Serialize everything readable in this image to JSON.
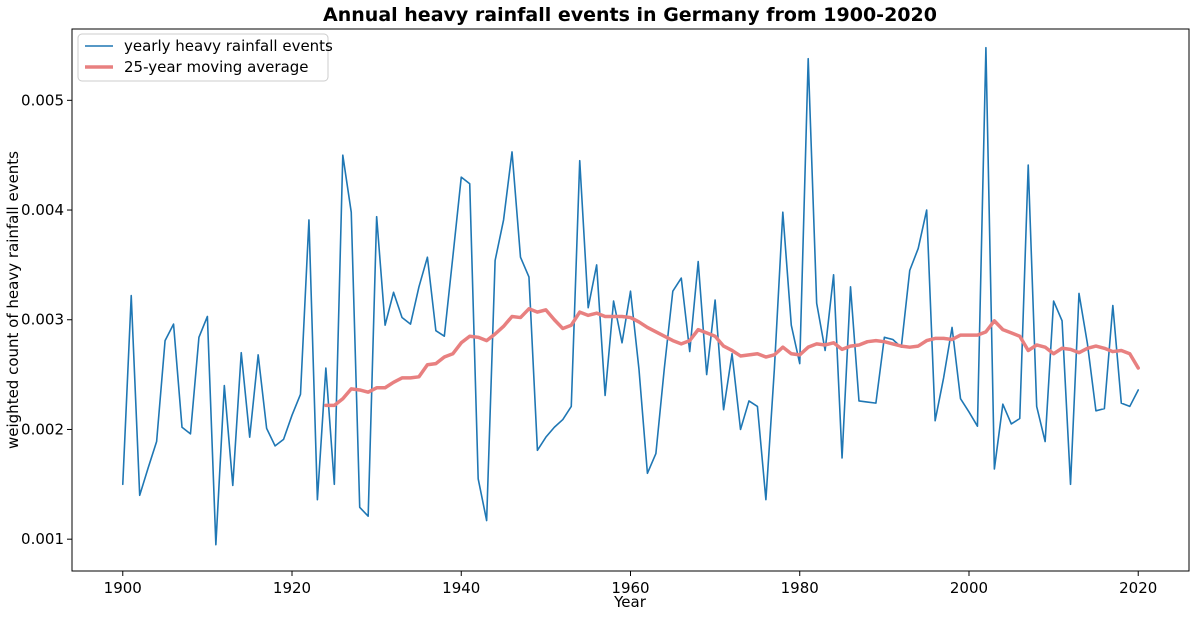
{
  "chart_data": {
    "type": "line",
    "title": "Annual heavy rainfall events in Germany from 1900-2020",
    "xlabel": "Year",
    "ylabel": "weighted count of heavy rainfall events",
    "xlim": [
      1894,
      2026
    ],
    "ylim": [
      0.00071,
      0.00565
    ],
    "x_ticks": [
      1900,
      1920,
      1940,
      1960,
      1980,
      2000,
      2020
    ],
    "x_tick_labels": [
      "1900",
      "1920",
      "1940",
      "1960",
      "1980",
      "2000",
      "2020"
    ],
    "y_ticks": [
      0.001,
      0.002,
      0.003,
      0.004,
      0.005
    ],
    "y_tick_labels": [
      "0.001",
      "0.002",
      "0.003",
      "0.004",
      "0.005"
    ],
    "grid": false,
    "legend_position": "top-left",
    "series": [
      {
        "name": "yearly heavy rainfall events",
        "color": "#1f77b4",
        "x": [
          1900,
          1901,
          1902,
          1903,
          1904,
          1905,
          1906,
          1907,
          1908,
          1909,
          1910,
          1911,
          1912,
          1913,
          1914,
          1915,
          1916,
          1917,
          1918,
          1919,
          1920,
          1921,
          1922,
          1923,
          1924,
          1925,
          1926,
          1927,
          1928,
          1929,
          1930,
          1931,
          1932,
          1933,
          1934,
          1935,
          1936,
          1937,
          1938,
          1939,
          1940,
          1941,
          1942,
          1943,
          1944,
          1945,
          1946,
          1947,
          1948,
          1949,
          1950,
          1951,
          1952,
          1953,
          1954,
          1955,
          1956,
          1957,
          1958,
          1959,
          1960,
          1961,
          1962,
          1963,
          1964,
          1965,
          1966,
          1967,
          1968,
          1969,
          1970,
          1971,
          1972,
          1973,
          1974,
          1975,
          1976,
          1977,
          1978,
          1979,
          1980,
          1981,
          1982,
          1983,
          1984,
          1985,
          1986,
          1987,
          1988,
          1989,
          1990,
          1991,
          1992,
          1993,
          1994,
          1995,
          1996,
          1997,
          1998,
          1999,
          2000,
          2001,
          2002,
          2003,
          2004,
          2005,
          2006,
          2007,
          2008,
          2009,
          2010,
          2011,
          2012,
          2013,
          2014,
          2015,
          2016,
          2017,
          2018,
          2019,
          2020
        ],
        "values": [
          0.0015,
          0.00322,
          0.0014,
          0.00165,
          0.00189,
          0.00281,
          0.00296,
          0.00202,
          0.00196,
          0.00284,
          0.00303,
          0.00095,
          0.0024,
          0.00149,
          0.0027,
          0.00193,
          0.00268,
          0.00201,
          0.00185,
          0.00191,
          0.00213,
          0.00232,
          0.00391,
          0.00136,
          0.00256,
          0.0015,
          0.0045,
          0.00398,
          0.00129,
          0.00121,
          0.00394,
          0.00295,
          0.00325,
          0.00302,
          0.00296,
          0.0033,
          0.00357,
          0.0029,
          0.00285,
          0.00357,
          0.0043,
          0.00424,
          0.00155,
          0.00117,
          0.00354,
          0.00391,
          0.00453,
          0.00357,
          0.00339,
          0.00181,
          0.00193,
          0.00202,
          0.00209,
          0.00221,
          0.00445,
          0.00311,
          0.0035,
          0.00231,
          0.00317,
          0.00279,
          0.00326,
          0.00255,
          0.0016,
          0.00178,
          0.00256,
          0.00326,
          0.00338,
          0.00271,
          0.00353,
          0.0025,
          0.00318,
          0.00218,
          0.00269,
          0.002,
          0.00226,
          0.00221,
          0.00136,
          0.00255,
          0.00398,
          0.00295,
          0.0026,
          0.00538,
          0.00315,
          0.00272,
          0.00341,
          0.00174,
          0.0033,
          0.00226,
          0.00225,
          0.00224,
          0.00284,
          0.00282,
          0.00275,
          0.00345,
          0.00365,
          0.004,
          0.00208,
          0.00247,
          0.00293,
          0.00228,
          0.00216,
          0.00203,
          0.00548,
          0.00164,
          0.00223,
          0.00205,
          0.0021,
          0.00441,
          0.00221,
          0.00189,
          0.00317,
          0.00299,
          0.0015,
          0.00324,
          0.00278,
          0.00217,
          0.00219,
          0.00313,
          0.00224,
          0.00221,
          0.00236
        ]
      },
      {
        "name": "25-year moving average",
        "color": "#e88080",
        "x": [
          1924,
          1925,
          1926,
          1927,
          1928,
          1929,
          1930,
          1931,
          1932,
          1933,
          1934,
          1935,
          1936,
          1937,
          1938,
          1939,
          1940,
          1941,
          1942,
          1943,
          1944,
          1945,
          1946,
          1947,
          1948,
          1949,
          1950,
          1951,
          1952,
          1953,
          1954,
          1955,
          1956,
          1957,
          1958,
          1959,
          1960,
          1961,
          1962,
          1963,
          1964,
          1965,
          1966,
          1967,
          1968,
          1969,
          1970,
          1971,
          1972,
          1973,
          1974,
          1975,
          1976,
          1977,
          1978,
          1979,
          1980,
          1981,
          1982,
          1983,
          1984,
          1985,
          1986,
          1987,
          1988,
          1989,
          1990,
          1991,
          1992,
          1993,
          1994,
          1995,
          1996,
          1997,
          1998,
          1999,
          2000,
          2001,
          2002,
          2003,
          2004,
          2005,
          2006,
          2007,
          2008,
          2009,
          2010,
          2011,
          2012,
          2013,
          2014,
          2015,
          2016,
          2017,
          2018,
          2019,
          2020
        ],
        "values": [
          0.00222,
          0.00222,
          0.00228,
          0.00237,
          0.00236,
          0.00234,
          0.00238,
          0.00238,
          0.00243,
          0.00247,
          0.00247,
          0.00248,
          0.00259,
          0.0026,
          0.00266,
          0.00269,
          0.00279,
          0.00285,
          0.00284,
          0.00281,
          0.00287,
          0.00294,
          0.00303,
          0.00302,
          0.0031,
          0.00307,
          0.00309,
          0.003,
          0.00292,
          0.00295,
          0.00307,
          0.00304,
          0.00306,
          0.00303,
          0.00303,
          0.00303,
          0.00302,
          0.00298,
          0.00293,
          0.00289,
          0.00285,
          0.00281,
          0.00278,
          0.00281,
          0.00291,
          0.00288,
          0.00285,
          0.00276,
          0.00272,
          0.00267,
          0.00268,
          0.00269,
          0.00266,
          0.00268,
          0.00275,
          0.00269,
          0.00268,
          0.00275,
          0.00278,
          0.00277,
          0.00279,
          0.00273,
          0.00276,
          0.00277,
          0.0028,
          0.00281,
          0.0028,
          0.00278,
          0.00276,
          0.00275,
          0.00276,
          0.00281,
          0.00283,
          0.00283,
          0.00282,
          0.00286,
          0.00286,
          0.00286,
          0.00289,
          0.00299,
          0.00291,
          0.00288,
          0.00285,
          0.00272,
          0.00277,
          0.00275,
          0.00269,
          0.00274,
          0.00273,
          0.0027,
          0.00274,
          0.00276,
          0.00274,
          0.00271,
          0.00272,
          0.00269,
          0.00256
        ]
      }
    ]
  }
}
